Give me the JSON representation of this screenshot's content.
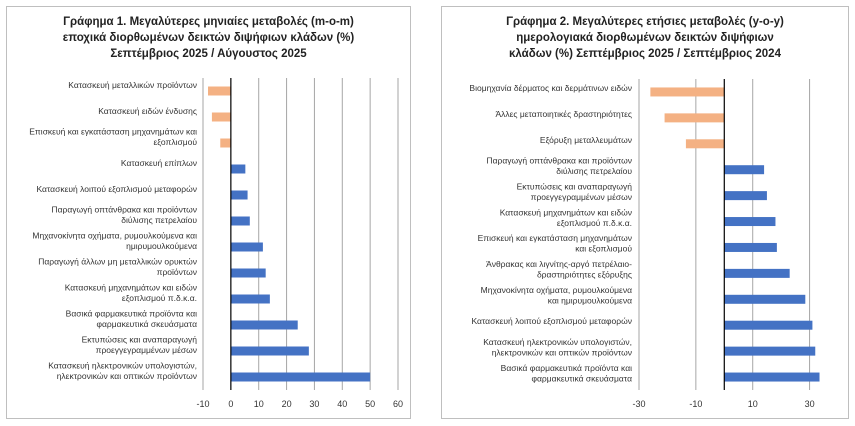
{
  "chart_data": [
    {
      "type": "bar",
      "orientation": "horizontal",
      "title_lines": [
        "Γράφημα 1. Μεγαλύτερες μηνιαίες μεταβολές (m-o-m)",
        "εποχικά διορθωμένων δεικτών διψήφιων κλάδων (%)",
        "Σεπτέμβριος 2025 / Αύγουστος 2025"
      ],
      "categories": [
        [
          "Κατασκευή μεταλλικών προϊόντων"
        ],
        [
          "Κατασκευή ειδών ένδυσης"
        ],
        [
          "Επισκευή και εγκατάσταση μηχανημάτων και",
          "εξοπλισμού"
        ],
        [
          "Κατασκευή επίπλων"
        ],
        [
          "Κατασκευή λοιπού εξοπλισμού μεταφορών"
        ],
        [
          "Παραγωγή οπτάνθρακα και προϊόντων",
          "διύλισης πετρελαίου"
        ],
        [
          "Μηχανοκίνητα οχήματα, ρυμουλκούμενα και",
          "ημιρυμουλκούμενα"
        ],
        [
          "Παραγωγή άλλων μη μεταλλικών ορυκτών",
          "προϊόντων"
        ],
        [
          "Κατασκευή μηχανημάτων και ειδών",
          "εξοπλισμού π.δ.κ.α."
        ],
        [
          "Βασικά φαρμακευτικά προϊόντα και",
          "φαρμακευτικά σκευάσματα"
        ],
        [
          "Εκτυπώσεις και αναπαραγωγή",
          "προεγγεγραμμένων μέσων"
        ],
        [
          "Κατασκευή ηλεκτρονικών υπολογιστών,",
          "ηλεκτρονικών και οπτικών προϊόντων"
        ]
      ],
      "values": [
        -8.2,
        -6.8,
        -3.8,
        5.2,
        6.0,
        6.8,
        11.5,
        12.5,
        14.0,
        24.0,
        28.0,
        50.0
      ],
      "xlim": [
        -10,
        60
      ],
      "xticks": [
        "-10",
        "0",
        "10",
        "20",
        "30",
        "40",
        "50",
        "60"
      ],
      "tick_values": [
        -10,
        0,
        10,
        20,
        30,
        40,
        50,
        60
      ],
      "grid": true,
      "colors": {
        "positive": "#4472c4",
        "negative": "#f4b183",
        "grid": "#a6a6a6",
        "axis": "#000000"
      }
    },
    {
      "type": "bar",
      "orientation": "horizontal",
      "title_lines": [
        "Γράφημα 2. Μεγαλύτερες ετήσιες μεταβολές (y-o-y)",
        "ημερολογιακά διορθωμένων δεικτών διψήφιων",
        "κλάδων (%)  Σεπτέμβριος 2025 / Σεπτέμβριος  2024"
      ],
      "categories": [
        [
          "Βιομηχανία δέρματος και δερμάτινων ειδών"
        ],
        [
          "Άλλες μεταποιητικές δραστηριότητες"
        ],
        [
          "Εξόρυξη μεταλλευμάτων"
        ],
        [
          "Παραγωγή οπτάνθρακα και προϊόντων",
          "διύλισης πετρελαίου"
        ],
        [
          "Εκτυπώσεις και αναπαραγωγή",
          "προεγγεγραμμένων μέσων"
        ],
        [
          "Κατασκευή μηχανημάτων και ειδών",
          "εξοπλισμού π.δ.κ.α."
        ],
        [
          "Επισκευή και εγκατάσταση μηχανημάτων",
          "και εξοπλισμού"
        ],
        [
          "Άνθρακας και λιγνίτης-αργό πετρέλαιο-",
          "δραστηριότητες εξόρυξης"
        ],
        [
          "Μηχανοκίνητα οχήματα, ρυμουλκούμενα",
          "και ημιρυμουλκούμενα"
        ],
        [
          "Κατασκευή λοιπού εξοπλισμού μεταφορών"
        ],
        [
          "Κατασκευή ηλεκτρονικών υπολογιστών,",
          "ηλεκτρονικών και οπτικών προϊόντων"
        ],
        [
          "Βασικά φαρμακευτικά προϊόντα και",
          "φαρμακευτικά σκευάσματα"
        ]
      ],
      "values": [
        -26.0,
        -21.0,
        -13.5,
        14.0,
        15.0,
        18.0,
        18.5,
        23.0,
        28.5,
        31.0,
        32.0,
        33.5
      ],
      "xlim": [
        -30,
        40
      ],
      "xticks": [
        "-30",
        "-10",
        "10",
        "30"
      ],
      "tick_values": [
        -30,
        -10,
        10,
        30
      ],
      "grid": true,
      "colors": {
        "positive": "#4472c4",
        "negative": "#f4b183",
        "grid": "#a6a6a6",
        "axis": "#000000"
      }
    }
  ]
}
